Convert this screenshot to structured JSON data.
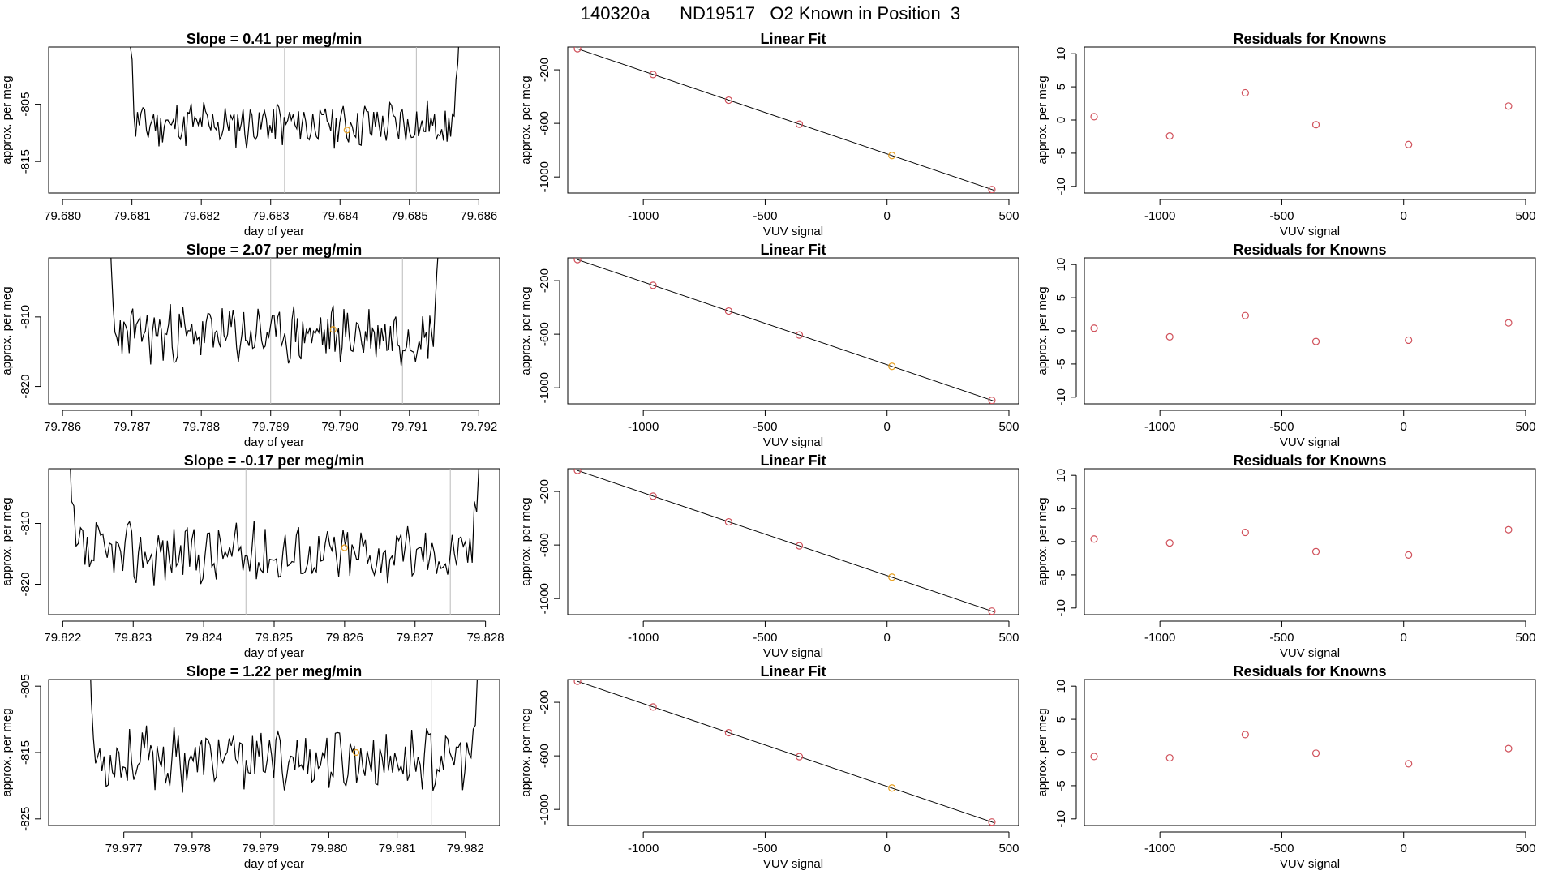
{
  "suptitle": "140320a      ND19517   O2 Known in Position  3",
  "colors": {
    "trace": "#000000",
    "fit_line": "#000000",
    "known": "#d0505a",
    "sample": "#e8a020",
    "vline": "#bbbbbb",
    "frame": "#000000"
  },
  "chart_data": [
    {
      "type": "line",
      "row": 0,
      "title": "Slope =  0.41  per meg/min",
      "xlabel": "day of year",
      "ylabel": "approx. per meg",
      "xlim": [
        79.6798,
        79.6863
      ],
      "ylim": [
        -820.5,
        -795
      ],
      "xticks": [
        79.68,
        79.681,
        79.682,
        79.683,
        79.684,
        79.685,
        79.686
      ],
      "xtick_labels": [
        "79.680",
        "79.681",
        "79.682",
        "79.683",
        "79.684",
        "79.685",
        "79.686"
      ],
      "yticks": [
        -805,
        -815
      ],
      "ytick_labels": [
        "-805",
        "-815"
      ],
      "vlines": [
        79.6832,
        79.6851
      ],
      "sample_point": [
        79.6841,
        -809.5
      ],
      "trace": {
        "x_start": 79.6809,
        "x_end": 79.6858,
        "center": -808.5,
        "amp": 3.5,
        "seed": 11
      }
    },
    {
      "type": "scatter",
      "row": 0,
      "title": "Linear Fit",
      "xlabel": "VUV signal",
      "ylabel": "approx. per meg",
      "xlim": [
        -1310,
        540
      ],
      "ylim": [
        -1120,
        -30
      ],
      "xticks": [
        -1000,
        -500,
        0,
        500
      ],
      "xtick_labels": [
        "-1000",
        "-500",
        "0",
        "500"
      ],
      "yticks": [
        -200,
        -600,
        -1000
      ],
      "ytick_labels": [
        "-200",
        "-600",
        "-1000"
      ],
      "fit": {
        "slope": -0.618,
        "intercept": -828
      },
      "points": [
        [
          -1270,
          -43
        ],
        [
          -960,
          -235
        ],
        [
          -650,
          -427
        ],
        [
          -360,
          -606
        ],
        [
          20,
          -840
        ],
        [
          430,
          -1094
        ]
      ],
      "sample_index": 4
    },
    {
      "type": "scatter",
      "row": 0,
      "title": "Residuals for Knowns",
      "xlabel": "VUV signal",
      "ylabel": "approx. per meg",
      "xlim": [
        -1310,
        540
      ],
      "ylim": [
        -11,
        11
      ],
      "xticks": [
        -1000,
        -500,
        0,
        500
      ],
      "xtick_labels": [
        "-1000",
        "-500",
        "0",
        "500"
      ],
      "yticks": [
        10,
        5,
        0,
        -5,
        -10
      ],
      "ytick_labels": [
        "10",
        "5",
        "0",
        "-5",
        "-10"
      ],
      "points": [
        [
          -1270,
          0.5
        ],
        [
          -960,
          -2.4
        ],
        [
          -650,
          4.1
        ],
        [
          -360,
          -0.7
        ],
        [
          20,
          -3.7
        ],
        [
          430,
          2.1
        ]
      ]
    },
    {
      "type": "line",
      "row": 1,
      "title": "Slope =  2.07  per meg/min",
      "xlabel": "day of year",
      "ylabel": "approx. per meg",
      "xlim": [
        79.7858,
        79.7923
      ],
      "ylim": [
        -822.5,
        -801.5
      ],
      "xticks": [
        79.786,
        79.787,
        79.788,
        79.789,
        79.79,
        79.791,
        79.792
      ],
      "xtick_labels": [
        "79.786",
        "79.787",
        "79.788",
        "79.789",
        "79.790",
        "79.791",
        "79.792"
      ],
      "yticks": [
        -810,
        -820
      ],
      "ytick_labels": [
        "-810",
        "-820"
      ],
      "vlines": [
        79.789,
        79.7909
      ],
      "sample_point": [
        79.7899,
        -811.8
      ],
      "trace": {
        "x_start": 79.7866,
        "x_end": 79.7915,
        "center": -812.5,
        "amp": 3.5,
        "seed": 23
      }
    },
    {
      "type": "scatter",
      "row": 1,
      "title": "Linear Fit",
      "xlabel": "VUV signal",
      "ylabel": "approx. per meg",
      "xlim": [
        -1310,
        540
      ],
      "ylim": [
        -1120,
        -30
      ],
      "xticks": [
        -1000,
        -500,
        0,
        500
      ],
      "xtick_labels": [
        "-1000",
        "-500",
        "0",
        "500"
      ],
      "yticks": [
        -200,
        -600,
        -1000
      ],
      "ytick_labels": [
        "-200",
        "-600",
        "-1000"
      ],
      "fit": {
        "slope": -0.618,
        "intercept": -828
      },
      "points": [
        [
          -1270,
          -43
        ],
        [
          -960,
          -235
        ],
        [
          -650,
          -427
        ],
        [
          -360,
          -606
        ],
        [
          20,
          -840
        ],
        [
          430,
          -1094
        ]
      ],
      "sample_index": 4
    },
    {
      "type": "scatter",
      "row": 1,
      "title": "Residuals for Knowns",
      "xlabel": "VUV signal",
      "ylabel": "approx. per meg",
      "xlim": [
        -1310,
        540
      ],
      "ylim": [
        -11,
        11
      ],
      "xticks": [
        -1000,
        -500,
        0,
        500
      ],
      "xtick_labels": [
        "-1000",
        "-500",
        "0",
        "500"
      ],
      "yticks": [
        10,
        5,
        0,
        -5,
        -10
      ],
      "ytick_labels": [
        "10",
        "5",
        "0",
        "-5",
        "-10"
      ],
      "points": [
        [
          -1270,
          0.4
        ],
        [
          -960,
          -0.9
        ],
        [
          -650,
          2.3
        ],
        [
          -360,
          -1.6
        ],
        [
          20,
          -1.4
        ],
        [
          430,
          1.2
        ]
      ]
    },
    {
      "type": "line",
      "row": 2,
      "title": "Slope =  -0.17  per meg/min",
      "xlabel": "day of year",
      "ylabel": "approx. per meg",
      "xlim": [
        79.8218,
        79.8282
      ],
      "ylim": [
        -825,
        -801
      ],
      "xticks": [
        79.822,
        79.823,
        79.824,
        79.825,
        79.826,
        79.827,
        79.828
      ],
      "xtick_labels": [
        "79.822",
        "79.823",
        "79.824",
        "79.825",
        "79.826",
        "79.827",
        "79.828"
      ],
      "yticks": [
        -810,
        -820
      ],
      "ytick_labels": [
        "-810",
        "-820"
      ],
      "vlines": [
        79.8246,
        79.8275
      ],
      "sample_point": [
        79.826,
        -814.0
      ],
      "trace": {
        "x_start": 79.822,
        "x_end": 79.828,
        "center": -815.0,
        "amp": 4.5,
        "seed": 37
      }
    },
    {
      "type": "scatter",
      "row": 2,
      "title": "Linear Fit",
      "xlabel": "VUV signal",
      "ylabel": "approx. per meg",
      "xlim": [
        -1310,
        540
      ],
      "ylim": [
        -1120,
        -30
      ],
      "xticks": [
        -1000,
        -500,
        0,
        500
      ],
      "xtick_labels": [
        "-1000",
        "-500",
        "0",
        "500"
      ],
      "yticks": [
        -200,
        -600,
        -1000
      ],
      "ytick_labels": [
        "-200",
        "-600",
        "-1000"
      ],
      "fit": {
        "slope": -0.618,
        "intercept": -828
      },
      "points": [
        [
          -1270,
          -43
        ],
        [
          -960,
          -235
        ],
        [
          -650,
          -427
        ],
        [
          -360,
          -606
        ],
        [
          20,
          -840
        ],
        [
          430,
          -1094
        ]
      ],
      "sample_index": 4
    },
    {
      "type": "scatter",
      "row": 2,
      "title": "Residuals for Knowns",
      "xlabel": "VUV signal",
      "ylabel": "approx. per meg",
      "xlim": [
        -1310,
        540
      ],
      "ylim": [
        -11,
        11
      ],
      "xticks": [
        -1000,
        -500,
        0,
        500
      ],
      "xtick_labels": [
        "-1000",
        "-500",
        "0",
        "500"
      ],
      "yticks": [
        10,
        5,
        0,
        -5,
        -10
      ],
      "ytick_labels": [
        "10",
        "5",
        "0",
        "-5",
        "-10"
      ],
      "points": [
        [
          -1270,
          0.4
        ],
        [
          -960,
          -0.2
        ],
        [
          -650,
          1.4
        ],
        [
          -360,
          -1.5
        ],
        [
          20,
          -2.0
        ],
        [
          430,
          1.8
        ]
      ]
    },
    {
      "type": "line",
      "row": 3,
      "title": "Slope =  1.22  per meg/min",
      "xlabel": "day of year",
      "ylabel": "approx. per meg",
      "xlim": [
        79.9759,
        79.9825
      ],
      "ylim": [
        -826,
        -804
      ],
      "xticks": [
        79.977,
        79.978,
        79.979,
        79.98,
        79.981,
        79.982
      ],
      "xtick_labels": [
        "79.977",
        "79.978",
        "79.979",
        "79.980",
        "79.981",
        "79.982"
      ],
      "yticks": [
        -805,
        -815,
        -825
      ],
      "ytick_labels": [
        "-805",
        "-815",
        "-825"
      ],
      "vlines": [
        79.9792,
        79.9815
      ],
      "sample_point": [
        79.9804,
        -815.0
      ],
      "trace": {
        "x_start": 79.9764,
        "x_end": 79.9823,
        "center": -816.0,
        "amp": 4.0,
        "seed": 53
      }
    },
    {
      "type": "scatter",
      "row": 3,
      "title": "Linear Fit",
      "xlabel": "VUV signal",
      "ylabel": "approx. per meg",
      "xlim": [
        -1310,
        540
      ],
      "ylim": [
        -1120,
        -30
      ],
      "xticks": [
        -1000,
        -500,
        0,
        500
      ],
      "xtick_labels": [
        "-1000",
        "-500",
        "0",
        "500"
      ],
      "yticks": [
        -200,
        -600,
        -1000
      ],
      "ytick_labels": [
        "-200",
        "-600",
        "-1000"
      ],
      "fit": {
        "slope": -0.618,
        "intercept": -828
      },
      "points": [
        [
          -1270,
          -43
        ],
        [
          -960,
          -235
        ],
        [
          -650,
          -427
        ],
        [
          -360,
          -606
        ],
        [
          20,
          -840
        ],
        [
          430,
          -1094
        ]
      ],
      "sample_index": 4
    },
    {
      "type": "scatter",
      "row": 3,
      "title": "Residuals for Knowns",
      "xlabel": "VUV signal",
      "ylabel": "approx. per meg",
      "xlim": [
        -1310,
        540
      ],
      "ylim": [
        -11,
        11
      ],
      "xticks": [
        -1000,
        -500,
        0,
        500
      ],
      "xtick_labels": [
        "-1000",
        "-500",
        "0",
        "500"
      ],
      "yticks": [
        10,
        5,
        0,
        -5,
        -10
      ],
      "ytick_labels": [
        "10",
        "5",
        "0",
        "-5",
        "-10"
      ],
      "points": [
        [
          -1270,
          -0.6
        ],
        [
          -960,
          -0.8
        ],
        [
          -650,
          2.7
        ],
        [
          -360,
          -0.1
        ],
        [
          20,
          -1.7
        ],
        [
          430,
          0.6
        ]
      ]
    }
  ]
}
